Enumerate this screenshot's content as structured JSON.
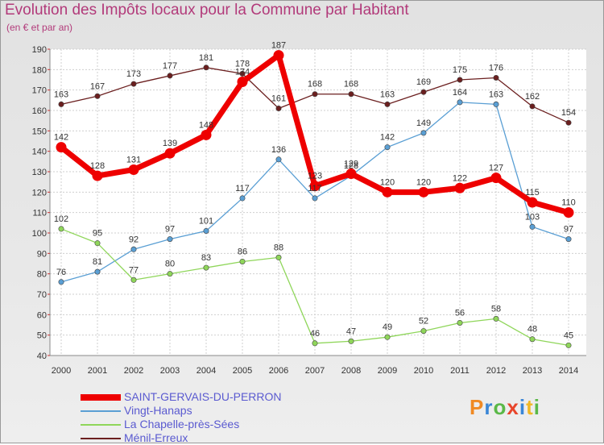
{
  "title": "Evolution des Impôts locaux pour la Commune par Habitant",
  "subtitle": "(en € et par an)",
  "logo": {
    "text": "Proxiti",
    "letters": [
      {
        "ch": "P",
        "color": "#f08a24"
      },
      {
        "ch": "r",
        "color": "#3a86d6"
      },
      {
        "ch": "o",
        "color": "#5ab848"
      },
      {
        "ch": "x",
        "color": "#e8452b"
      },
      {
        "ch": "i",
        "color": "#3a86d6"
      },
      {
        "ch": "t",
        "color": "#f0b824"
      },
      {
        "ch": "i",
        "color": "#5ab848"
      }
    ]
  },
  "chart_data": {
    "type": "line",
    "title": "Evolution des Impôts locaux pour la Commune par Habitant",
    "ylabel": "(en € et par an)",
    "xlabel": "",
    "ylim": [
      40,
      190
    ],
    "yticks": [
      40,
      50,
      60,
      70,
      80,
      90,
      100,
      110,
      120,
      130,
      140,
      150,
      160,
      170,
      180,
      190
    ],
    "grid": true,
    "legend_position": "bottom-left",
    "categories": [
      "2000",
      "2001",
      "2002",
      "2003",
      "2004",
      "2005",
      "2006",
      "2007",
      "2008",
      "2009",
      "2010",
      "2011",
      "2012",
      "2013",
      "2014"
    ],
    "series": [
      {
        "name": "Ménil-Erreux",
        "color": "#6b1f1f",
        "values": [
          163,
          167,
          173,
          177,
          181,
          178,
          161,
          168,
          168,
          163,
          169,
          175,
          176,
          162,
          154
        ]
      },
      {
        "name": "Vingt-Hanaps",
        "color": "#5a9fd4",
        "values": [
          76,
          81,
          92,
          97,
          101,
          117,
          136,
          117,
          128,
          142,
          149,
          164,
          163,
          103,
          97
        ]
      },
      {
        "name": "La Chapelle-près-Sées",
        "color": "#8fd65a",
        "values": [
          102,
          95,
          77,
          80,
          83,
          86,
          88,
          46,
          47,
          49,
          52,
          56,
          58,
          48,
          45
        ]
      },
      {
        "name": "SAINT-GERVAIS-DU-PERRON",
        "color": "#ee0000",
        "values": [
          142,
          128,
          131,
          139,
          148,
          174,
          187,
          123,
          129,
          120,
          120,
          122,
          127,
          115,
          110
        ]
      }
    ],
    "legend_order": [
      "SAINT-GERVAIS-DU-PERRON",
      "Vingt-Hanaps",
      "La Chapelle-près-Sées",
      "Ménil-Erreux"
    ]
  }
}
